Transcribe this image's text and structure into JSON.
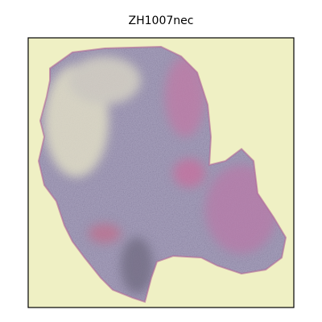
{
  "title": "ZH1007nec"
}
